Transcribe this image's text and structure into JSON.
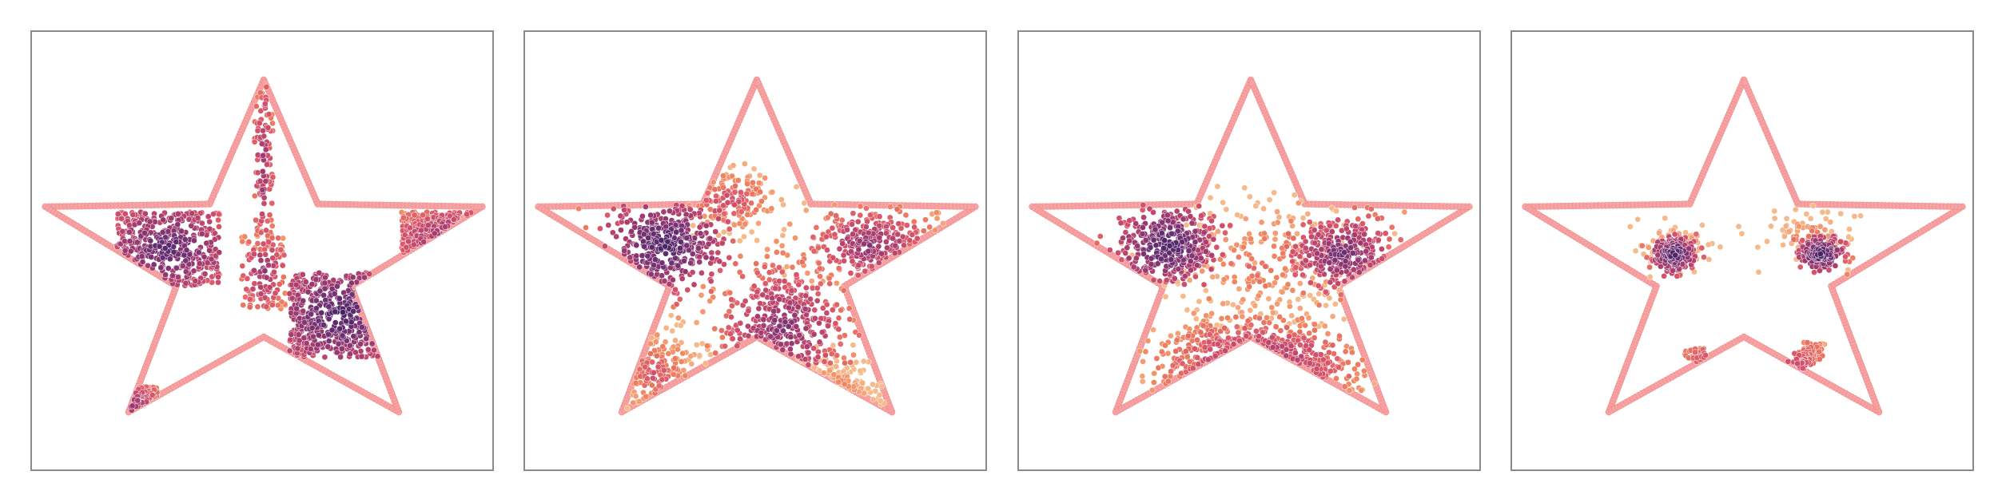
{
  "figure": {
    "panel_count": 4,
    "grid": false,
    "axes_visible": false
  },
  "colors": {
    "outline": "#f7a3a3",
    "outline_edge": "#ef8080",
    "point_edge": "#ffffff",
    "colormap": [
      "#3b1f5e",
      "#6a2f73",
      "#a53b6f",
      "#d9546a",
      "#f1855f",
      "#f6b98a"
    ]
  },
  "chart_data": [
    {
      "type": "scatter",
      "description_key": "panel-1",
      "boundary": "star",
      "clusters": [
        {
          "cx": 0.0,
          "cy": 0.52,
          "rx": 0.05,
          "ry": 0.45,
          "n": 120,
          "shape": "rect",
          "density": 0.35
        },
        {
          "cx": -0.52,
          "cy": 0.08,
          "rx": 0.28,
          "ry": 0.2,
          "n": 420,
          "shape": "rect",
          "density": 0.15
        },
        {
          "cx": 0.42,
          "cy": -0.28,
          "rx": 0.28,
          "ry": 0.23,
          "n": 460,
          "shape": "rect",
          "density": 0.1
        },
        {
          "cx": 1.05,
          "cy": 0.12,
          "rx": 0.3,
          "ry": 0.16,
          "n": 260,
          "shape": "rect",
          "density": 0.3
        },
        {
          "cx": -0.78,
          "cy": -0.78,
          "rx": 0.2,
          "ry": 0.11,
          "n": 110,
          "shape": "rect",
          "density": 0.3
        },
        {
          "cx": 0.7,
          "cy": -0.92,
          "rx": 0.05,
          "ry": 0.1,
          "n": 40,
          "shape": "rect",
          "density": 0.4
        },
        {
          "cx": 0.0,
          "cy": -0.05,
          "rx": 0.12,
          "ry": 0.2,
          "n": 120,
          "shape": "rect",
          "density": 0.35
        }
      ]
    },
    {
      "type": "scatter",
      "description_key": "panel-2",
      "boundary": "star",
      "clusters": [
        {
          "cx": -0.5,
          "cy": 0.1,
          "rx": 0.26,
          "ry": 0.2,
          "n": 380,
          "shape": "gauss",
          "density": 0.1
        },
        {
          "cx": 0.15,
          "cy": -0.35,
          "rx": 0.3,
          "ry": 0.28,
          "n": 380,
          "shape": "gauss",
          "density": 0.3
        },
        {
          "cx": 0.62,
          "cy": 0.1,
          "rx": 0.3,
          "ry": 0.18,
          "n": 280,
          "shape": "gauss",
          "density": 0.35
        },
        {
          "cx": -0.15,
          "cy": 0.35,
          "rx": 0.25,
          "ry": 0.15,
          "n": 160,
          "shape": "gauss",
          "density": 0.55
        },
        {
          "cx": -0.55,
          "cy": -0.6,
          "rx": 0.22,
          "ry": 0.22,
          "n": 140,
          "shape": "gauss",
          "density": 0.6
        },
        {
          "cx": 0.4,
          "cy": -0.75,
          "rx": 0.2,
          "ry": 0.18,
          "n": 100,
          "shape": "gauss",
          "density": 0.65
        }
      ]
    },
    {
      "type": "scatter",
      "description_key": "panel-3",
      "boundary": "star",
      "clusters": [
        {
          "cx": -0.45,
          "cy": 0.1,
          "rx": 0.22,
          "ry": 0.17,
          "n": 360,
          "shape": "gauss",
          "density": 0.1
        },
        {
          "cx": 0.5,
          "cy": 0.05,
          "rx": 0.24,
          "ry": 0.18,
          "n": 320,
          "shape": "gauss",
          "density": 0.25
        },
        {
          "cx": 0.05,
          "cy": -0.55,
          "rx": 0.42,
          "ry": 0.2,
          "n": 420,
          "shape": "gauss",
          "density": 0.35
        },
        {
          "cx": 0.05,
          "cy": 0.0,
          "rx": 0.5,
          "ry": 0.35,
          "n": 260,
          "shape": "gauss",
          "density": 0.7
        }
      ]
    },
    {
      "type": "scatter",
      "description_key": "panel-4",
      "boundary": "star",
      "clusters": [
        {
          "cx": -0.38,
          "cy": 0.05,
          "rx": 0.1,
          "ry": 0.08,
          "n": 200,
          "shape": "gauss",
          "density": 0.1
        },
        {
          "cx": 0.42,
          "cy": 0.05,
          "rx": 0.1,
          "ry": 0.08,
          "n": 200,
          "shape": "gauss",
          "density": 0.1
        },
        {
          "cx": -0.38,
          "cy": 0.1,
          "rx": 0.22,
          "ry": 0.12,
          "n": 80,
          "shape": "gauss",
          "density": 0.75
        },
        {
          "cx": 0.35,
          "cy": 0.15,
          "rx": 0.22,
          "ry": 0.12,
          "n": 80,
          "shape": "gauss",
          "density": 0.75
        },
        {
          "shape": "smile",
          "cx": 0.05,
          "cy": -0.62,
          "rx": 0.35,
          "ry": 0.22,
          "n": 200,
          "density": 0.35
        }
      ]
    }
  ]
}
